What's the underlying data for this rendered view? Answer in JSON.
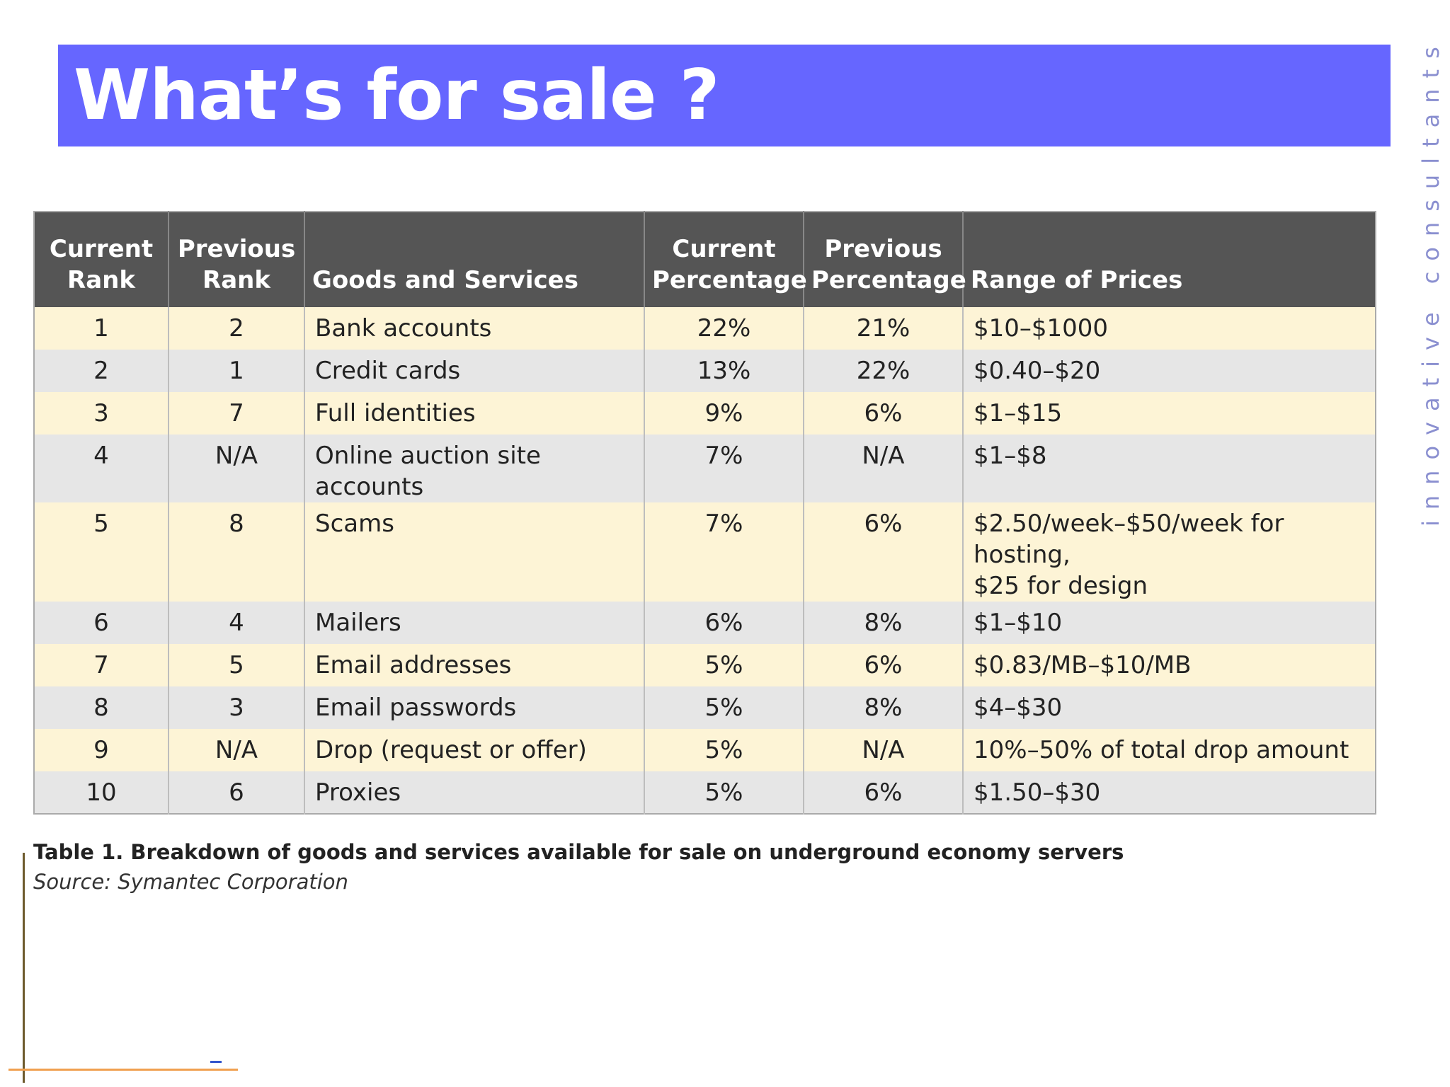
{
  "slide": {
    "title": "What’s for sale ?",
    "side_text": "innovative consultants"
  },
  "table": {
    "headers": {
      "current_rank": [
        "Current",
        "Rank"
      ],
      "previous_rank": [
        "Previous",
        "Rank"
      ],
      "goods": "Goods and Services",
      "current_pct": [
        "Current",
        "Percentage"
      ],
      "previous_pct": [
        "Previous",
        "Percentage"
      ],
      "prices": "Range of Prices"
    },
    "rows": [
      {
        "current_rank": "1",
        "previous_rank": "2",
        "goods": "Bank accounts",
        "current_pct": "22%",
        "previous_pct": "21%",
        "prices": "$10–$1000"
      },
      {
        "current_rank": "2",
        "previous_rank": "1",
        "goods": "Credit cards",
        "current_pct": "13%",
        "previous_pct": "22%",
        "prices": "$0.40–$20"
      },
      {
        "current_rank": "3",
        "previous_rank": "7",
        "goods": "Full identities",
        "current_pct": "9%",
        "previous_pct": "6%",
        "prices": "$1–$15"
      },
      {
        "current_rank": "4",
        "previous_rank": "N/A",
        "goods": "Online auction site accounts",
        "current_pct": "7%",
        "previous_pct": "N/A",
        "prices": "$1–$8"
      },
      {
        "current_rank": "5",
        "previous_rank": "8",
        "goods": "Scams",
        "current_pct": "7%",
        "previous_pct": "6%",
        "prices": [
          "$2.50/week–$50/week for hosting,",
          "$25 for design"
        ]
      },
      {
        "current_rank": "6",
        "previous_rank": "4",
        "goods": "Mailers",
        "current_pct": "6%",
        "previous_pct": "8%",
        "prices": "$1–$10"
      },
      {
        "current_rank": "7",
        "previous_rank": "5",
        "goods": "Email addresses",
        "current_pct": "5%",
        "previous_pct": "6%",
        "prices": "$0.83/MB–$10/MB"
      },
      {
        "current_rank": "8",
        "previous_rank": "3",
        "goods": "Email passwords",
        "current_pct": "5%",
        "previous_pct": "8%",
        "prices": "$4–$30"
      },
      {
        "current_rank": "9",
        "previous_rank": "N/A",
        "goods": "Drop (request or offer)",
        "current_pct": "5%",
        "previous_pct": "N/A",
        "prices": "10%–50% of total drop amount"
      },
      {
        "current_rank": "10",
        "previous_rank": "6",
        "goods": "Proxies",
        "current_pct": "5%",
        "previous_pct": "6%",
        "prices": "$1.50–$30"
      }
    ],
    "caption": "Table 1. Breakdown of goods and services available for sale on underground economy servers",
    "source": "Source: Symantec Corporation"
  },
  "colors": {
    "banner": "#6666ff",
    "header_bg": "#555555",
    "row_odd": "#fdf4d6",
    "row_even": "#e6e6e6",
    "side_text": "#8a8fd0",
    "vertical_rule": "#6d5a2d",
    "horizontal_rule": "#f0a050",
    "dash_mark": "#3355cc"
  }
}
